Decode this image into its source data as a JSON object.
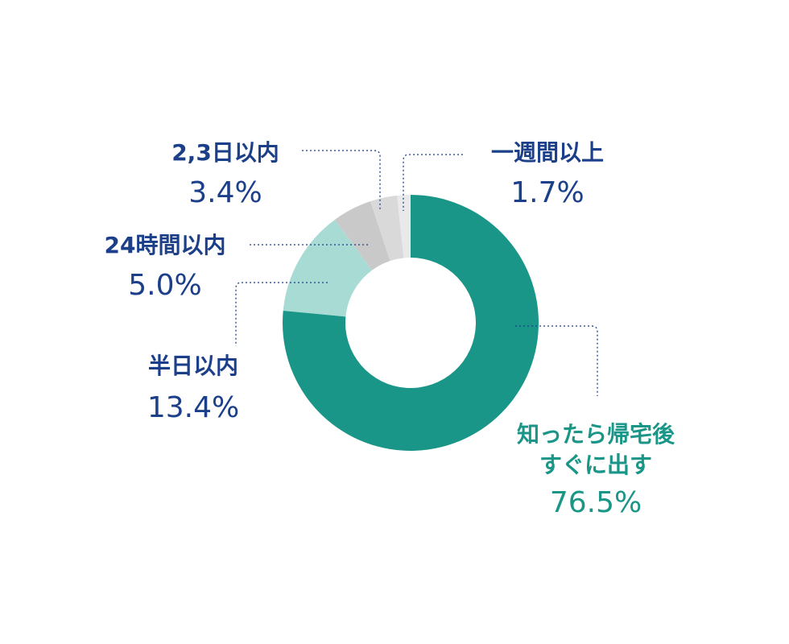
{
  "chart_data": {
    "type": "donut",
    "categories": [
      "知ったら帰宅後\nすぐに出す",
      "半日以内",
      "24時間以内",
      "2,3日以内",
      "一週間以上"
    ],
    "values": [
      76.5,
      13.4,
      5.0,
      3.4,
      1.7
    ],
    "value_labels": [
      "76.5%",
      "13.4%",
      "5.0%",
      "3.4%",
      "1.7%"
    ],
    "colors": [
      "#1a9688",
      "#a8dbd4",
      "#c9c9c9",
      "#d9d9d9",
      "#e9e9e9"
    ]
  }
}
